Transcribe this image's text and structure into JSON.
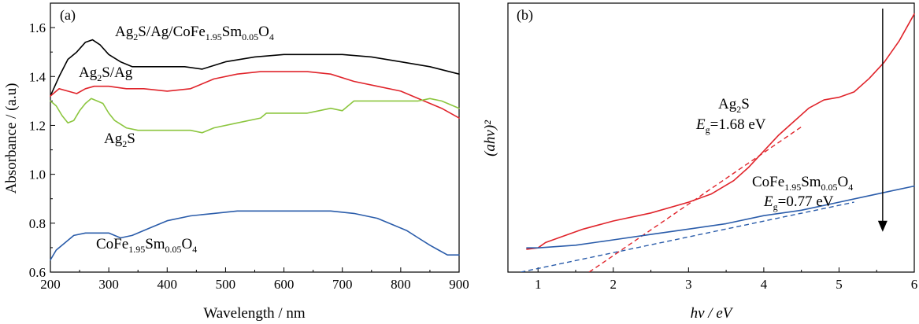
{
  "chart_data": [
    {
      "panel": "(a)",
      "type": "line",
      "xlabel": "Wavelength / nm",
      "ylabel": "Absorbance / (a.u)",
      "xlim": [
        200,
        900
      ],
      "ylim": [
        0.6,
        1.7
      ],
      "xticks": [
        200,
        300,
        400,
        500,
        600,
        700,
        800,
        900
      ],
      "yticks": [
        "0.6",
        "0.8",
        "1.0",
        "1.2",
        "1.4",
        "1.6"
      ],
      "series": [
        {
          "name": "Ag2S/Ag/CoFe1.95Sm0.05O4",
          "color": "#000000",
          "x": [
            200,
            215,
            230,
            245,
            260,
            272,
            285,
            300,
            320,
            340,
            360,
            380,
            400,
            430,
            460,
            500,
            550,
            600,
            650,
            700,
            750,
            800,
            850,
            900
          ],
          "y": [
            1.32,
            1.4,
            1.47,
            1.5,
            1.54,
            1.55,
            1.53,
            1.49,
            1.46,
            1.44,
            1.44,
            1.44,
            1.44,
            1.44,
            1.43,
            1.46,
            1.48,
            1.49,
            1.49,
            1.49,
            1.48,
            1.46,
            1.44,
            1.41
          ]
        },
        {
          "name": "Ag2S/Ag",
          "color": "#e0242b",
          "x": [
            200,
            215,
            230,
            245,
            260,
            275,
            300,
            330,
            360,
            400,
            440,
            480,
            520,
            560,
            600,
            640,
            680,
            720,
            760,
            800,
            840,
            870,
            900
          ],
          "y": [
            1.32,
            1.35,
            1.34,
            1.33,
            1.35,
            1.36,
            1.36,
            1.35,
            1.35,
            1.34,
            1.35,
            1.39,
            1.41,
            1.42,
            1.42,
            1.42,
            1.41,
            1.38,
            1.36,
            1.34,
            1.3,
            1.27,
            1.23
          ]
        },
        {
          "name": "Ag2S",
          "color": "#8cc63f",
          "x": [
            200,
            210,
            220,
            230,
            240,
            250,
            260,
            270,
            280,
            290,
            300,
            310,
            330,
            350,
            370,
            400,
            440,
            460,
            480,
            520,
            560,
            570,
            600,
            640,
            660,
            680,
            700,
            720,
            760,
            800,
            830,
            850,
            870,
            900
          ],
          "y": [
            1.3,
            1.28,
            1.24,
            1.21,
            1.22,
            1.26,
            1.29,
            1.31,
            1.3,
            1.29,
            1.25,
            1.22,
            1.19,
            1.18,
            1.18,
            1.18,
            1.18,
            1.17,
            1.19,
            1.21,
            1.23,
            1.25,
            1.25,
            1.25,
            1.26,
            1.27,
            1.26,
            1.3,
            1.3,
            1.3,
            1.3,
            1.31,
            1.3,
            1.27
          ]
        },
        {
          "name": "CoFe1.95Sm0.05O4",
          "color": "#2a5caa",
          "x": [
            200,
            210,
            225,
            240,
            260,
            280,
            300,
            320,
            340,
            370,
            400,
            440,
            480,
            520,
            560,
            600,
            640,
            680,
            720,
            760,
            790,
            810,
            830,
            850,
            865,
            880,
            900
          ],
          "y": [
            0.65,
            0.69,
            0.72,
            0.75,
            0.76,
            0.76,
            0.76,
            0.74,
            0.75,
            0.78,
            0.81,
            0.83,
            0.84,
            0.85,
            0.85,
            0.85,
            0.85,
            0.85,
            0.84,
            0.82,
            0.79,
            0.77,
            0.74,
            0.71,
            0.69,
            0.67,
            0.67
          ]
        }
      ],
      "annotations": {
        "composite": {
          "base": "Ag",
          "s1": "2",
          "mid": "S/Ag/CoFe",
          "s2": "1.95",
          "mid2": "Sm",
          "s3": "0.05",
          "end": "O",
          "s4": "4"
        },
        "ag2s_ag": {
          "base": "Ag",
          "s1": "2",
          "end": "S/Ag"
        },
        "ag2s": {
          "base": "Ag",
          "s1": "2",
          "end": "S"
        },
        "cofe": {
          "base": "CoFe",
          "s1": "1.95",
          "mid": "Sm",
          "s2": "0.05",
          "end": "O",
          "s3": "4"
        }
      }
    },
    {
      "panel": "(b)",
      "type": "line",
      "xlabel": "hv / eV",
      "ylabel": "(ahv)²",
      "xlim": [
        0.6,
        6.0
      ],
      "ylim": [
        0,
        1
      ],
      "xticks": [
        1,
        2,
        3,
        4,
        5,
        6
      ],
      "series": [
        {
          "name": "Ag2S",
          "color": "#e0242b",
          "x": [
            0.85,
            1.0,
            1.1,
            1.3,
            1.6,
            2.0,
            2.5,
            3.0,
            3.3,
            3.6,
            3.8,
            4.0,
            4.2,
            4.4,
            4.6,
            4.8,
            5.0,
            5.2,
            5.4,
            5.6,
            5.8,
            6.0
          ],
          "y": [
            0.085,
            0.09,
            0.11,
            0.13,
            0.16,
            0.19,
            0.22,
            0.26,
            0.29,
            0.34,
            0.39,
            0.45,
            0.51,
            0.56,
            0.61,
            0.64,
            0.65,
            0.67,
            0.72,
            0.78,
            0.86,
            0.96
          ]
        },
        {
          "name": "CoFe1.95Sm0.05O4",
          "color": "#2a5caa",
          "x": [
            0.85,
            1.0,
            1.5,
            2.0,
            2.5,
            3.0,
            3.5,
            4.0,
            4.5,
            5.0,
            5.5,
            6.0
          ],
          "y": [
            0.09,
            0.09,
            0.1,
            0.12,
            0.14,
            0.16,
            0.18,
            0.21,
            0.23,
            0.26,
            0.29,
            0.32
          ]
        }
      ],
      "fits": [
        {
          "name": "Ag2S tangent",
          "color": "#e0242b",
          "x": [
            1.68,
            4.5
          ],
          "y": [
            0.0,
            0.54
          ]
        },
        {
          "name": "CoFe tangent",
          "color": "#2a5caa",
          "x": [
            0.77,
            5.2
          ],
          "y": [
            0.0,
            0.26
          ]
        }
      ],
      "arrow": {
        "x": 5.58,
        "y_from": 0.98,
        "y_to": 0.15
      },
      "annotations": {
        "ag2s": {
          "base": "Ag",
          "s1": "2",
          "end": "S"
        },
        "ag2s_eg": {
          "sym": "E",
          "sub": "g",
          "val": "=1.68 eV"
        },
        "cofe": {
          "base": "CoFe",
          "s1": "1.95",
          "mid": "Sm",
          "s2": "0.05",
          "end": "O",
          "s3": "4"
        },
        "cofe_eg": {
          "sym": "E",
          "sub": "g",
          "val": "=0.77 eV"
        }
      }
    }
  ]
}
